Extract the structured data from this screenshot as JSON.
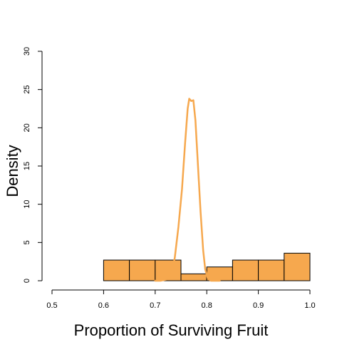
{
  "chart_data": {
    "type": "bar",
    "subtype": "histogram-with-density",
    "title": "",
    "xlabel": "Proportion of Surviving Fruit",
    "ylabel": "Density",
    "xlim": [
      0.5,
      1.0
    ],
    "ylim": [
      0,
      30
    ],
    "xticks": [
      "0.5",
      "0.6",
      "0.7",
      "0.8",
      "0.9",
      "1.0"
    ],
    "yticks": [
      "0",
      "5",
      "10",
      "15",
      "20",
      "25",
      "30"
    ],
    "bins": [
      {
        "start": 0.6,
        "end": 0.65,
        "density": 2.7
      },
      {
        "start": 0.65,
        "end": 0.7,
        "density": 2.7
      },
      {
        "start": 0.7,
        "end": 0.75,
        "density": 2.7
      },
      {
        "start": 0.75,
        "end": 0.8,
        "density": 0.9
      },
      {
        "start": 0.8,
        "end": 0.85,
        "density": 1.8
      },
      {
        "start": 0.85,
        "end": 0.9,
        "density": 2.7
      },
      {
        "start": 0.9,
        "end": 0.95,
        "density": 2.7
      },
      {
        "start": 0.95,
        "end": 1.0,
        "density": 3.6
      }
    ],
    "density_curve": [
      [
        0.7,
        0.0
      ],
      [
        0.71,
        0.0
      ],
      [
        0.725,
        0.2
      ],
      [
        0.732,
        1.0
      ],
      [
        0.738,
        3.0
      ],
      [
        0.745,
        7.0
      ],
      [
        0.752,
        12.0
      ],
      [
        0.758,
        18.0
      ],
      [
        0.763,
        22.5
      ],
      [
        0.766,
        23.8
      ],
      [
        0.77,
        23.5
      ],
      [
        0.774,
        23.6
      ],
      [
        0.778,
        21.0
      ],
      [
        0.783,
        15.0
      ],
      [
        0.788,
        9.0
      ],
      [
        0.793,
        4.0
      ],
      [
        0.797,
        1.5
      ],
      [
        0.802,
        0.3
      ],
      [
        0.808,
        0.0
      ],
      [
        0.82,
        0.0
      ],
      [
        0.825,
        0.0
      ]
    ],
    "colors": {
      "bar_fill": "#F6A84E",
      "bar_stroke": "#000000",
      "curve": "#F6A84E",
      "axis": "#000000"
    },
    "grid": false,
    "legend": "none"
  }
}
